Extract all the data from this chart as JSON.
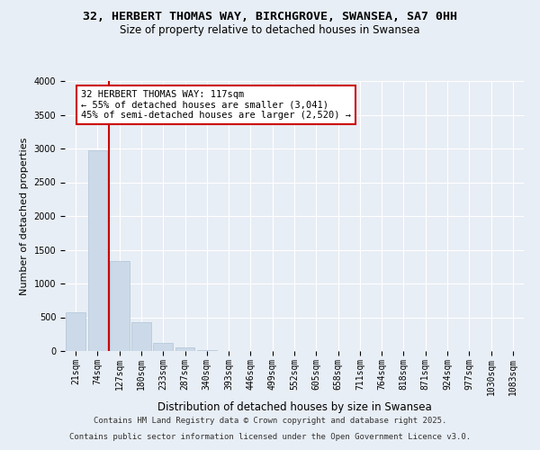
{
  "title_line1": "32, HERBERT THOMAS WAY, BIRCHGROVE, SWANSEA, SA7 0HH",
  "title_line2": "Size of property relative to detached houses in Swansea",
  "xlabel": "Distribution of detached houses by size in Swansea",
  "ylabel": "Number of detached properties",
  "categories": [
    "21sqm",
    "74sqm",
    "127sqm",
    "180sqm",
    "233sqm",
    "287sqm",
    "340sqm",
    "393sqm",
    "446sqm",
    "499sqm",
    "552sqm",
    "605sqm",
    "658sqm",
    "711sqm",
    "764sqm",
    "818sqm",
    "871sqm",
    "924sqm",
    "977sqm",
    "1030sqm",
    "1083sqm"
  ],
  "values": [
    570,
    2980,
    1340,
    430,
    120,
    50,
    15,
    5,
    2,
    1,
    0,
    0,
    0,
    0,
    0,
    0,
    0,
    0,
    0,
    0,
    0
  ],
  "bar_color": "#ccd9e8",
  "bar_edge_color": "#b0c4d8",
  "vline_color": "#cc0000",
  "vline_x_index": 1.5,
  "ylim": [
    0,
    4000
  ],
  "yticks": [
    0,
    500,
    1000,
    1500,
    2000,
    2500,
    3000,
    3500,
    4000
  ],
  "annotation_text": "32 HERBERT THOMAS WAY: 117sqm\n← 55% of detached houses are smaller (3,041)\n45% of semi-detached houses are larger (2,520) →",
  "annotation_box_facecolor": "#ffffff",
  "annotation_box_edgecolor": "#cc0000",
  "footer_line1": "Contains HM Land Registry data © Crown copyright and database right 2025.",
  "footer_line2": "Contains public sector information licensed under the Open Government Licence v3.0.",
  "bg_color": "#e8eef5",
  "grid_color": "#ffffff",
  "title1_fontsize": 9.5,
  "title2_fontsize": 8.5,
  "ylabel_fontsize": 8,
  "xlabel_fontsize": 8.5,
  "tick_fontsize": 7,
  "annotation_fontsize": 7.5,
  "footer_fontsize": 6.5
}
